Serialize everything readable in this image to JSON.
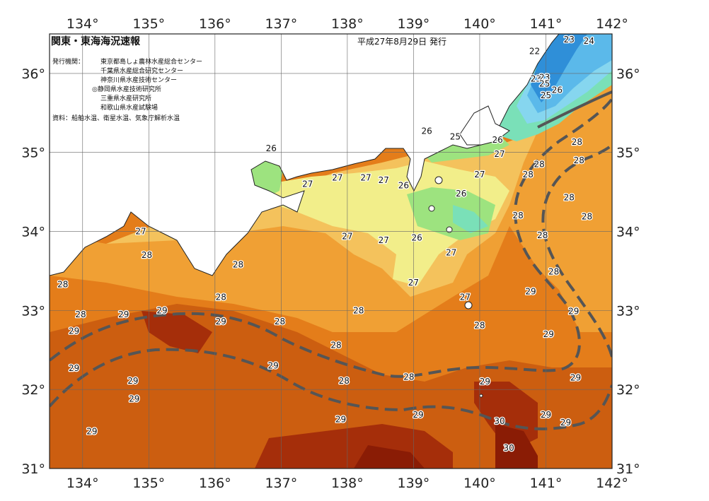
{
  "header": {
    "title": "関東・東海海況速報",
    "date": "平成27年8月29日 発行",
    "issuer_label": "発行機関：",
    "issuers": [
      "東京都島しょ農林水産総合センター",
      "千葉県水産総合研究センター",
      "神奈川県水産技術センター",
      "◎静岡県水産技術研究所",
      "三重県水産研究所",
      "和歌山県水産試験場"
    ],
    "source": "資料：船舶水温、衛星水温、気象庁解析水温"
  },
  "axes": {
    "lon_labels": [
      "134°",
      "135°",
      "136°",
      "137°",
      "138°",
      "139°",
      "140°",
      "141°",
      "142°"
    ],
    "lat_labels": [
      "36°",
      "35°",
      "34°",
      "33°",
      "32°",
      "31°"
    ]
  },
  "colors": {
    "t22": "#2f8fd8",
    "t23": "#5bb9ea",
    "t24": "#86d6ef",
    "t25": "#7ae0b8",
    "t26": "#9de37f",
    "t27": "#f2ee8a",
    "t27b": "#f4c25c",
    "t28": "#f0a034",
    "t28b": "#e47d1a",
    "t29": "#cc5e10",
    "t30": "#a52e0a",
    "t31": "#8a1c05",
    "land": "#ffffff",
    "kuroshio": "#555555"
  },
  "isotherm_labels": [
    {
      "text": "22",
      "lon": 140.83,
      "lat": 36.28
    },
    {
      "text": "23",
      "lon": 141.35,
      "lat": 36.43
    },
    {
      "text": "24",
      "lon": 141.65,
      "lat": 36.41
    },
    {
      "text": "23",
      "lon": 140.85,
      "lat": 35.93
    },
    {
      "text": "23",
      "lon": 140.98,
      "lat": 35.95
    },
    {
      "text": "25",
      "lon": 140.98,
      "lat": 35.87
    },
    {
      "text": "25",
      "lon": 141.0,
      "lat": 35.72
    },
    {
      "text": "26",
      "lon": 141.17,
      "lat": 35.79
    },
    {
      "text": "26",
      "lon": 139.2,
      "lat": 35.27
    },
    {
      "text": "25",
      "lon": 139.63,
      "lat": 35.2
    },
    {
      "text": "26",
      "lon": 140.27,
      "lat": 35.16
    },
    {
      "text": "27",
      "lon": 140.3,
      "lat": 34.98
    },
    {
      "text": "28",
      "lon": 141.47,
      "lat": 35.13
    },
    {
      "text": "28",
      "lon": 141.5,
      "lat": 34.9
    },
    {
      "text": "28",
      "lon": 140.9,
      "lat": 34.85
    },
    {
      "text": "28",
      "lon": 140.73,
      "lat": 34.72
    },
    {
      "text": "27",
      "lon": 140.0,
      "lat": 34.72
    },
    {
      "text": "26",
      "lon": 136.85,
      "lat": 35.05
    },
    {
      "text": "27",
      "lon": 137.4,
      "lat": 34.6
    },
    {
      "text": "27",
      "lon": 137.85,
      "lat": 34.68
    },
    {
      "text": "27",
      "lon": 138.28,
      "lat": 34.68
    },
    {
      "text": "27",
      "lon": 138.55,
      "lat": 34.65
    },
    {
      "text": "26",
      "lon": 138.85,
      "lat": 34.58
    },
    {
      "text": "26",
      "lon": 139.72,
      "lat": 34.48
    },
    {
      "text": "28",
      "lon": 141.35,
      "lat": 34.43
    },
    {
      "text": "28",
      "lon": 141.62,
      "lat": 34.19
    },
    {
      "text": "28",
      "lon": 140.58,
      "lat": 34.2
    },
    {
      "text": "27",
      "lon": 134.88,
      "lat": 34.0
    },
    {
      "text": "27",
      "lon": 138.0,
      "lat": 33.94
    },
    {
      "text": "27",
      "lon": 138.55,
      "lat": 33.89
    },
    {
      "text": "26",
      "lon": 139.05,
      "lat": 33.92
    },
    {
      "text": "28",
      "lon": 140.95,
      "lat": 33.95
    },
    {
      "text": "28",
      "lon": 134.97,
      "lat": 33.7
    },
    {
      "text": "27",
      "lon": 139.57,
      "lat": 33.73
    },
    {
      "text": "28",
      "lon": 136.35,
      "lat": 33.58
    },
    {
      "text": "28",
      "lon": 141.12,
      "lat": 33.49
    },
    {
      "text": "28",
      "lon": 133.7,
      "lat": 33.33
    },
    {
      "text": "27",
      "lon": 139.0,
      "lat": 33.35
    },
    {
      "text": "29",
      "lon": 140.77,
      "lat": 33.24
    },
    {
      "text": "28",
      "lon": 136.09,
      "lat": 33.17
    },
    {
      "text": "27",
      "lon": 139.78,
      "lat": 33.17
    },
    {
      "text": "29",
      "lon": 141.42,
      "lat": 32.99
    },
    {
      "text": "29",
      "lon": 135.2,
      "lat": 33.0
    },
    {
      "text": "28",
      "lon": 133.97,
      "lat": 32.95
    },
    {
      "text": "29",
      "lon": 134.62,
      "lat": 32.95
    },
    {
      "text": "28",
      "lon": 138.17,
      "lat": 33.0
    },
    {
      "text": "29",
      "lon": 136.09,
      "lat": 32.86
    },
    {
      "text": "28",
      "lon": 136.98,
      "lat": 32.86
    },
    {
      "text": "28",
      "lon": 140.0,
      "lat": 32.81
    },
    {
      "text": "29",
      "lon": 133.87,
      "lat": 32.74
    },
    {
      "text": "29",
      "lon": 141.04,
      "lat": 32.7
    },
    {
      "text": "28",
      "lon": 137.83,
      "lat": 32.56
    },
    {
      "text": "29",
      "lon": 136.88,
      "lat": 32.3
    },
    {
      "text": "29",
      "lon": 133.87,
      "lat": 32.27
    },
    {
      "text": "28",
      "lon": 138.93,
      "lat": 32.16
    },
    {
      "text": "29",
      "lon": 141.45,
      "lat": 32.15
    },
    {
      "text": "29",
      "lon": 134.76,
      "lat": 32.11
    },
    {
      "text": "28",
      "lon": 137.95,
      "lat": 32.11
    },
    {
      "text": "29",
      "lon": 140.08,
      "lat": 32.1
    },
    {
      "text": "29",
      "lon": 134.78,
      "lat": 31.88
    },
    {
      "text": "29",
      "lon": 137.9,
      "lat": 31.62
    },
    {
      "text": "29",
      "lon": 139.07,
      "lat": 31.68
    },
    {
      "text": "29",
      "lon": 141.0,
      "lat": 31.68
    },
    {
      "text": "30",
      "lon": 140.3,
      "lat": 31.6
    },
    {
      "text": "29",
      "lon": 141.3,
      "lat": 31.58
    },
    {
      "text": "29",
      "lon": 134.14,
      "lat": 31.47
    },
    {
      "text": "30",
      "lon": 140.44,
      "lat": 31.26
    }
  ]
}
